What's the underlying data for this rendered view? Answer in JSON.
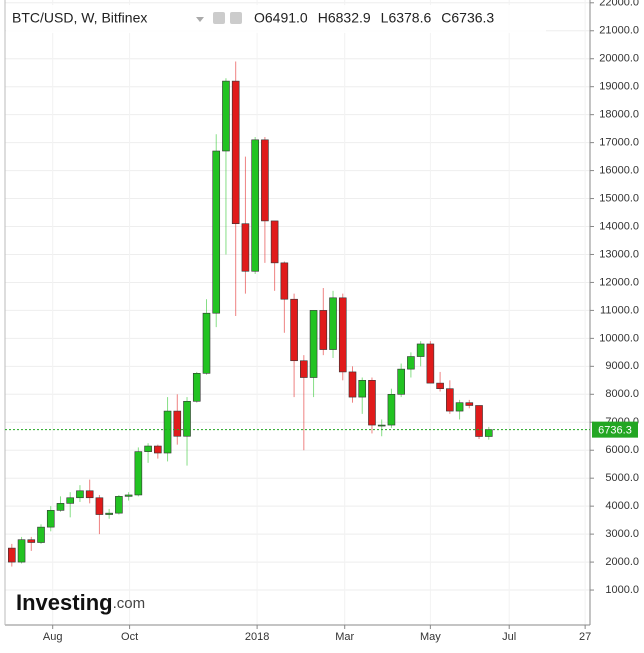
{
  "chart_data": {
    "type": "candlestick",
    "title": "BTC/USD, W, Bitfinex",
    "ohlc_labels": [
      "O6491.0",
      "H6832.9",
      "L6378.6",
      "C6736.3"
    ],
    "watermark": [
      "Investing",
      ".com"
    ],
    "last_price": 6736.3,
    "up_color": "#22c322",
    "down_color": "#e01b1b",
    "last_price_color": "#23a623",
    "grid": true,
    "open": [
      2500,
      2000,
      2800,
      2700,
      3250,
      3850,
      4100,
      4300,
      4550,
      4300,
      3700,
      3750,
      4350,
      4400,
      5950,
      6150,
      5900,
      7400,
      6500,
      7750,
      8750,
      10900,
      16700,
      19200,
      14100,
      12400,
      17100,
      14200,
      12700,
      11400,
      9200,
      8600,
      11000,
      9600,
      11450,
      8800,
      7900,
      8500,
      6900,
      6900,
      8000,
      8900,
      9350,
      9800,
      8400,
      8200,
      7400,
      7700,
      7600,
      6491
    ],
    "high": [
      2650,
      2900,
      2900,
      3350,
      4000,
      4350,
      4500,
      4750,
      4950,
      4400,
      3900,
      4400,
      4500,
      6100,
      6250,
      6200,
      7900,
      8000,
      7900,
      8800,
      11400,
      17300,
      19300,
      19900,
      16500,
      17200,
      17200,
      14200,
      12750,
      11600,
      9400,
      11000,
      11800,
      11700,
      11600,
      9000,
      8600,
      8600,
      7100,
      8200,
      9100,
      9500,
      9900,
      9900,
      8800,
      8500,
      7800,
      7800,
      7600,
      6832.9
    ],
    "low": [
      1840,
      1950,
      2400,
      2650,
      3100,
      3800,
      3600,
      4150,
      4100,
      3000,
      3550,
      3700,
      4200,
      4350,
      5550,
      5700,
      5600,
      6200,
      5450,
      7700,
      8700,
      10400,
      13000,
      10800,
      11600,
      12300,
      12700,
      11700,
      10200,
      7900,
      6000,
      7900,
      9400,
      9300,
      8500,
      7700,
      7300,
      6600,
      6500,
      6800,
      7900,
      8600,
      9000,
      8400,
      8100,
      7300,
      7100,
      7500,
      6400,
      6378.6
    ],
    "close": [
      2000,
      2800,
      2700,
      3250,
      3850,
      4100,
      4300,
      4550,
      4300,
      3700,
      3750,
      4350,
      4400,
      5950,
      6150,
      5900,
      7400,
      6500,
      7750,
      8750,
      10900,
      16700,
      19200,
      14100,
      12400,
      17100,
      14200,
      12700,
      11400,
      9200,
      8600,
      11000,
      9600,
      11450,
      8800,
      7900,
      8500,
      6900,
      6900,
      8000,
      8900,
      9350,
      9800,
      8400,
      8200,
      7400,
      7700,
      7600,
      6491,
      6736.3
    ],
    "xlim": [
      -0.7,
      59.4
    ],
    "xticks": [
      {
        "value": 4.2,
        "label": "Aug"
      },
      {
        "value": 12.1,
        "label": "Oct"
      },
      {
        "value": 25.2,
        "label": "2018"
      },
      {
        "value": 34.2,
        "label": "Mar"
      },
      {
        "value": 43.0,
        "label": "May"
      },
      {
        "value": 51.1,
        "label": "Jul"
      },
      {
        "value": 58.9,
        "label": "27"
      }
    ],
    "ylim": [
      -250,
      22100
    ],
    "yticks": [
      {
        "value": 1000,
        "label": "1000.0"
      },
      {
        "value": 2000,
        "label": "2000.0"
      },
      {
        "value": 3000,
        "label": "3000.0"
      },
      {
        "value": 4000,
        "label": "4000.0"
      },
      {
        "value": 5000,
        "label": "5000.0"
      },
      {
        "value": 6000,
        "label": "6000.0"
      },
      {
        "value": 7000,
        "label": "7000.0"
      },
      {
        "value": 8000,
        "label": "8000.0"
      },
      {
        "value": 9000,
        "label": "9000.0"
      },
      {
        "value": 10000,
        "label": "10000.0"
      },
      {
        "value": 11000,
        "label": "11000.0"
      },
      {
        "value": 12000,
        "label": "12000.0"
      },
      {
        "value": 13000,
        "label": "13000.0"
      },
      {
        "value": 14000,
        "label": "14000.0"
      },
      {
        "value": 15000,
        "label": "15000.0"
      },
      {
        "value": 16000,
        "label": "16000.0"
      },
      {
        "value": 17000,
        "label": "17000.0"
      },
      {
        "value": 18000,
        "label": "18000.0"
      },
      {
        "value": 19000,
        "label": "19000.0"
      },
      {
        "value": 20000,
        "label": "20000.0"
      },
      {
        "value": 21000,
        "label": "21000.0"
      },
      {
        "value": 22000,
        "label": "22000.0"
      }
    ]
  }
}
